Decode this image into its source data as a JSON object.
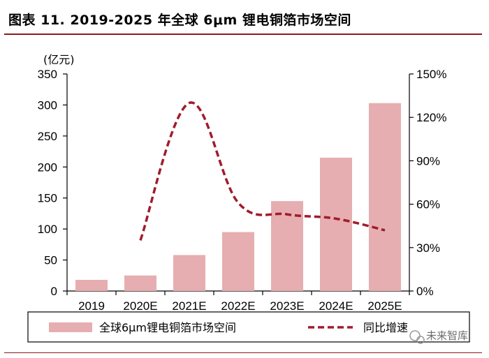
{
  "title": "图表 11. 2019-2025 年全球 6μm 锂电铜箔市场空间",
  "watermark": "未来智库",
  "chart_data": {
    "type": "bar+line",
    "categories": [
      "2019",
      "2020E",
      "2021E",
      "2022E",
      "2023E",
      "2024E",
      "2025E"
    ],
    "series": [
      {
        "name": "全球6μm锂电铜箔市场空间",
        "kind": "bar",
        "axis": "left",
        "color": "#e6aeb0",
        "values": [
          18,
          25,
          58,
          95,
          145,
          215,
          303
        ]
      },
      {
        "name": "同比增速",
        "kind": "line",
        "axis": "right",
        "style": "dashed",
        "color": "#a01c2c",
        "values": [
          null,
          0.35,
          1.3,
          0.61,
          0.53,
          0.5,
          0.42
        ]
      }
    ],
    "y_left": {
      "unit": "(亿元)",
      "min": 0,
      "max": 350,
      "ticks": [
        0,
        50,
        100,
        150,
        200,
        250,
        300,
        350
      ]
    },
    "y_right": {
      "min": 0,
      "max": 1.5,
      "ticks": [
        0,
        0.3,
        0.6,
        0.9,
        1.2,
        1.5
      ],
      "tick_labels": [
        "0%",
        "30%",
        "60%",
        "90%",
        "120%",
        "150%"
      ]
    },
    "legend": {
      "position": "bottom",
      "items": [
        "全球6μm锂电铜箔市场空间",
        "同比增速"
      ]
    }
  }
}
